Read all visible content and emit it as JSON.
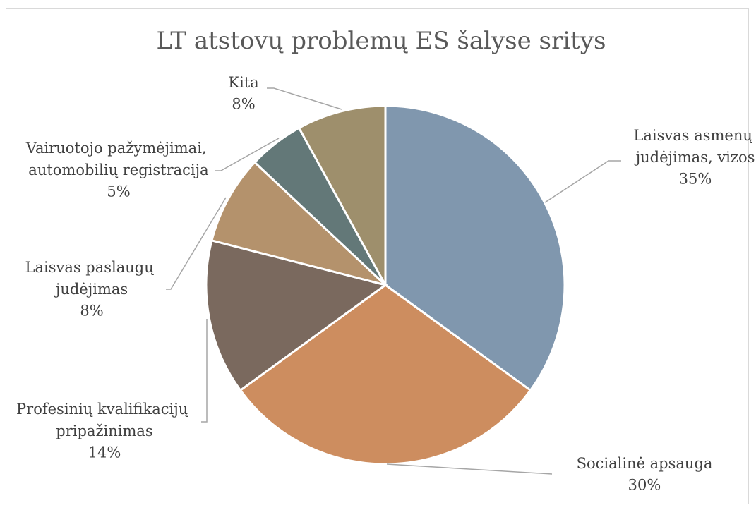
{
  "chart_data": {
    "type": "pie",
    "title": "LT atstovų problemų ES šalyse sritys",
    "categories": [
      "Laisvas asmenų judėjimas, vizos",
      "Socialinė apsauga",
      "Profesinių kvalifikacijų pripažinimas",
      "Laisvas paslaugų judėjimas",
      "Vairuotojo pažymėjimai, automobilių registracija",
      "Kita"
    ],
    "values": [
      35,
      30,
      14,
      8,
      5,
      8
    ],
    "value_labels": [
      "35%",
      "30%",
      "14%",
      "8%",
      "5%",
      "8%"
    ],
    "colors": [
      "#8097ae",
      "#cd8d5f",
      "#7a695e",
      "#b4926c",
      "#637878",
      "#9e8f6c"
    ]
  }
}
